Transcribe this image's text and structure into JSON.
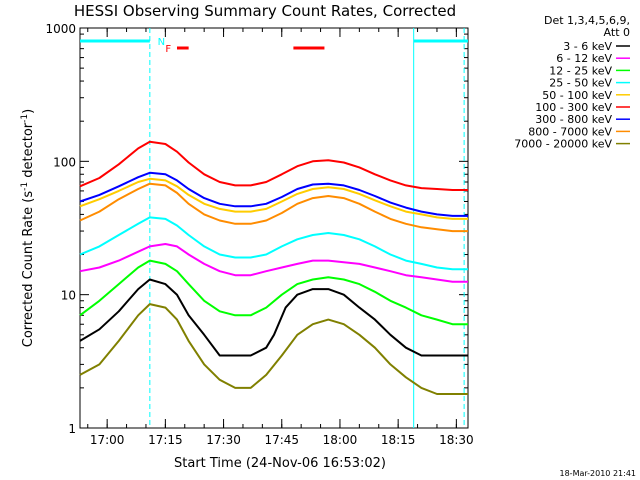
{
  "chart_data": {
    "type": "line",
    "title": "HESSI Observing Summary Count Rates, Corrected",
    "xlabel": "Start Time (24-Nov-06 16:53:02)",
    "ylabel_main": "Corrected Count Rate (s",
    "ylabel_sup1": "-1",
    "ylabel_mid": " detector",
    "ylabel_sup2": "-1",
    "ylabel_end": ")",
    "y_scale": "log",
    "ylim": [
      1,
      1000
    ],
    "xlim_minutes": [
      0,
      100
    ],
    "x_ticks": [
      {
        "minute": 7,
        "label": "17:00"
      },
      {
        "minute": 22,
        "label": "17:15"
      },
      {
        "minute": 37,
        "label": "17:30"
      },
      {
        "minute": 52,
        "label": "17:45"
      },
      {
        "minute": 67,
        "label": "18:00"
      },
      {
        "minute": 82,
        "label": "18:15"
      },
      {
        "minute": 97,
        "label": "18:30"
      }
    ],
    "y_ticks": [
      {
        "value": 1,
        "label": "1"
      },
      {
        "value": 10,
        "label": "10"
      },
      {
        "value": 100,
        "label": "100"
      },
      {
        "value": 1000,
        "label": "1000"
      }
    ],
    "legend_header": [
      "Det 1,3,4,5,6,9,",
      "Att 0"
    ],
    "legend_position": "top-right-outside",
    "footer_date": "18-Mar-2010 21:41",
    "flag_labels": {
      "n": "N",
      "f": "F"
    },
    "series": [
      {
        "name": "3 - 6 keV",
        "color": "#000000",
        "x": [
          0,
          5,
          10,
          15,
          18,
          22,
          25,
          28,
          32,
          36,
          40,
          44,
          48,
          50,
          53,
          56,
          60,
          64,
          68,
          72,
          76,
          80,
          84,
          88,
          92,
          96,
          100
        ],
        "y": [
          4.5,
          5.5,
          7.5,
          11,
          13,
          12,
          10,
          7,
          5,
          3.5,
          3.5,
          3.5,
          4,
          5,
          8,
          10,
          11,
          11,
          10,
          8,
          6.5,
          5,
          4,
          3.5,
          3.5,
          3.5,
          3.5
        ]
      },
      {
        "name": "6 - 12 keV",
        "color": "#ff00ff",
        "x": [
          0,
          5,
          10,
          15,
          18,
          22,
          25,
          28,
          32,
          36,
          40,
          44,
          48,
          52,
          56,
          60,
          64,
          68,
          72,
          76,
          80,
          84,
          88,
          92,
          96,
          100
        ],
        "y": [
          15,
          16,
          18,
          21,
          23,
          24,
          23,
          20,
          17,
          15,
          14,
          14,
          15,
          16,
          17,
          18,
          18,
          17.5,
          17,
          16,
          15,
          14,
          13.5,
          13,
          12.5,
          12.5
        ]
      },
      {
        "name": "12 - 25 keV",
        "color": "#00ff00",
        "x": [
          0,
          5,
          10,
          15,
          18,
          22,
          25,
          28,
          32,
          36,
          40,
          44,
          48,
          52,
          56,
          60,
          64,
          68,
          72,
          76,
          80,
          84,
          88,
          92,
          96,
          100
        ],
        "y": [
          7,
          9,
          12,
          16,
          18,
          17,
          15,
          12,
          9,
          7.5,
          7,
          7,
          8,
          10,
          12,
          13,
          13.5,
          13,
          12,
          10.5,
          9,
          8,
          7,
          6.5,
          6,
          6
        ]
      },
      {
        "name": "25 - 50 keV",
        "color": "#00ffff",
        "x": [
          0,
          5,
          10,
          15,
          18,
          22,
          25,
          28,
          32,
          36,
          40,
          44,
          48,
          52,
          56,
          60,
          64,
          68,
          72,
          76,
          80,
          84,
          88,
          92,
          96,
          100
        ],
        "y": [
          20,
          23,
          28,
          34,
          38,
          37,
          33,
          28,
          23,
          20,
          19,
          19,
          20,
          23,
          26,
          28,
          29,
          28,
          26,
          23,
          20,
          18,
          17,
          16,
          15.5,
          15.5
        ]
      },
      {
        "name": "50 - 100 keV",
        "color": "#ffcc00",
        "x": [
          0,
          5,
          10,
          15,
          18,
          22,
          25,
          28,
          32,
          36,
          40,
          44,
          48,
          52,
          56,
          60,
          64,
          68,
          72,
          76,
          80,
          84,
          88,
          92,
          96,
          100
        ],
        "y": [
          46,
          52,
          60,
          70,
          74,
          72,
          65,
          56,
          48,
          44,
          42,
          42,
          44,
          50,
          57,
          62,
          64,
          62,
          57,
          51,
          46,
          42,
          40,
          38,
          37,
          37
        ]
      },
      {
        "name": "100 - 300 keV",
        "color": "#ff0000",
        "x": [
          0,
          5,
          10,
          15,
          18,
          22,
          25,
          28,
          32,
          36,
          40,
          44,
          48,
          52,
          56,
          60,
          64,
          68,
          72,
          76,
          80,
          84,
          88,
          92,
          96,
          100
        ],
        "y": [
          65,
          75,
          95,
          125,
          140,
          135,
          118,
          98,
          80,
          70,
          66,
          66,
          70,
          80,
          92,
          100,
          102,
          98,
          90,
          80,
          72,
          66,
          63,
          62,
          61,
          61
        ]
      },
      {
        "name": "300 - 800 keV",
        "color": "#0000ff",
        "x": [
          0,
          5,
          10,
          15,
          18,
          22,
          25,
          28,
          32,
          36,
          40,
          44,
          48,
          52,
          56,
          60,
          64,
          68,
          72,
          76,
          80,
          84,
          88,
          92,
          96,
          100
        ],
        "y": [
          50,
          56,
          65,
          76,
          82,
          80,
          72,
          62,
          53,
          48,
          46,
          46,
          48,
          54,
          62,
          67,
          68,
          66,
          61,
          55,
          49,
          45,
          42,
          40,
          39,
          39
        ]
      },
      {
        "name": "800 - 7000 keV",
        "color": "#ff8c00",
        "x": [
          0,
          5,
          10,
          15,
          18,
          22,
          25,
          28,
          32,
          36,
          40,
          44,
          48,
          52,
          56,
          60,
          64,
          68,
          72,
          76,
          80,
          84,
          88,
          92,
          96,
          100
        ],
        "y": [
          36,
          42,
          52,
          62,
          68,
          66,
          58,
          48,
          40,
          36,
          34,
          34,
          36,
          41,
          48,
          53,
          55,
          53,
          48,
          42,
          37,
          34,
          32,
          31,
          30,
          30
        ]
      },
      {
        "name": "7000 - 20000 keV",
        "color": "#808000",
        "x": [
          0,
          5,
          10,
          15,
          18,
          22,
          25,
          28,
          32,
          36,
          40,
          44,
          48,
          52,
          56,
          60,
          64,
          68,
          72,
          76,
          80,
          84,
          88,
          92,
          96,
          100
        ],
        "y": [
          2.5,
          3,
          4.5,
          7,
          8.5,
          8,
          6.5,
          4.5,
          3,
          2.3,
          2,
          2,
          2.5,
          3.5,
          5,
          6,
          6.5,
          6,
          5,
          4,
          3,
          2.4,
          2,
          1.8,
          1.8,
          1.8
        ]
      }
    ],
    "state_bars": [
      {
        "row": "top",
        "color": "#00ffff",
        "x_start": 0,
        "x_end": 18
      },
      {
        "row": "top",
        "color": "#00ffff",
        "x_start": 86,
        "x_end": 100
      },
      {
        "row": "mid",
        "color": "#ff0000",
        "x_start": 25,
        "x_end": 28
      },
      {
        "row": "mid",
        "color": "#ff0000",
        "x_start": 55,
        "x_end": 63
      }
    ],
    "vlines": [
      {
        "x": 18,
        "color": "#00ffff",
        "style": "dashed"
      },
      {
        "x": 86,
        "color": "#00ffff",
        "style": "solid"
      },
      {
        "x": 99,
        "color": "#00ffff",
        "style": "dashed"
      }
    ],
    "flag_positions": {
      "n_x": 20,
      "f_x": 22
    }
  }
}
